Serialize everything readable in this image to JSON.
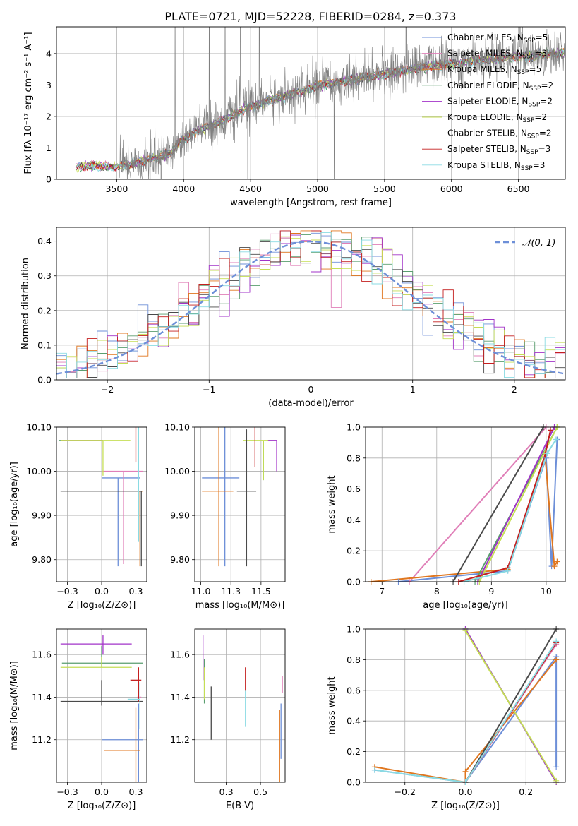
{
  "figure": {
    "title": "PLATE=0721, MJD=52228, FIBERID=0284, z=0.373"
  },
  "models": [
    {
      "name": "Chabrier MILES",
      "nssp": "5",
      "color": "#6d8fd8"
    },
    {
      "name": "Salpeter MILES",
      "nssp": "3",
      "color": "#e07fb8"
    },
    {
      "name": "Kroupa MILES",
      "nssp": "5",
      "color": "#e0761e"
    },
    {
      "name": "Chabrier ELODIE",
      "nssp": "2",
      "color": "#5a9e6f"
    },
    {
      "name": "Salpeter ELODIE",
      "nssp": "2",
      "color": "#a233c8"
    },
    {
      "name": "Kroupa ELODIE",
      "nssp": "2",
      "color": "#c5de54"
    },
    {
      "name": "Chabrier STELIB",
      "nssp": "2",
      "color": "#4a4a4a"
    },
    {
      "name": "Salpeter STELIB",
      "nssp": "3",
      "color": "#c41f1f"
    },
    {
      "name": "Kroupa STELIB",
      "nssp": "3",
      "color": "#8adbe3"
    }
  ],
  "chart_data": [
    {
      "id": "spectrum",
      "type": "line",
      "xlabel": "wavelength [Angstrom, rest frame]",
      "ylabel": "Flux [fλ 10⁻¹⁷ erg cm⁻² s⁻¹ A⁻¹]",
      "xlim": [
        3050,
        6850
      ],
      "ylim": [
        0,
        4.85
      ],
      "xticks": [
        3500,
        4000,
        4500,
        5000,
        5500,
        6000,
        6500
      ],
      "yticks": [
        0,
        1,
        2,
        3,
        4
      ],
      "data_color": "#808080",
      "data_x_range": [
        3520,
        6850
      ],
      "model_x_range": [
        3200,
        6850
      ],
      "continuum": {
        "x": [
          3200,
          3300,
          3500,
          3700,
          3900,
          4000,
          4100,
          4300,
          4500,
          4700,
          4900,
          5000,
          5200,
          5400,
          5600,
          5800,
          6000,
          6200,
          6400,
          6600,
          6850
        ],
        "y": [
          0.4,
          0.45,
          0.42,
          0.6,
          0.85,
          1.3,
          1.55,
          1.9,
          2.35,
          2.6,
          2.85,
          3.0,
          3.15,
          3.3,
          3.45,
          3.6,
          3.7,
          3.8,
          3.9,
          3.95,
          4.05
        ]
      },
      "legend": "top-right"
    },
    {
      "id": "residuals",
      "type": "histogram",
      "xlabel": "(data-model)/error",
      "ylabel": "Normed distribution",
      "xlim": [
        -2.5,
        2.5
      ],
      "ylim": [
        0,
        0.44
      ],
      "xticks": [
        -2,
        -1,
        0,
        1,
        2
      ],
      "yticks": [
        0.0,
        0.1,
        0.2,
        0.3,
        0.4
      ],
      "bin_width": 0.1,
      "reference_curve": {
        "label": "𝒩(0, 1)",
        "mean": 0,
        "sigma": 1,
        "color": "#6d8fd8"
      },
      "legend": "top-right"
    },
    {
      "id": "age-vs-Z",
      "type": "errorbar",
      "xlabel": "Z [log₁₀(Z/Z⊙)]",
      "ylabel": "age  [log₁₀(age/yr)]",
      "xlim": [
        -0.33,
        0.33
      ],
      "ylim": [
        9.75,
        10.1
      ],
      "xticks": [
        -0.25,
        0.0,
        0.25
      ],
      "yticks": [
        9.8,
        9.9,
        10.0,
        10.1
      ],
      "points": [
        {
          "model": 0,
          "x": 0.12,
          "xerr": [
            0.12,
            0.16
          ],
          "y": 9.985,
          "yerr": [
            0.2,
            0.0
          ]
        },
        {
          "model": 1,
          "x": 0.16,
          "xerr": [
            0.16,
            0.14
          ],
          "y": 10.0,
          "yerr": [
            0.21,
            0.0
          ]
        },
        {
          "model": 2,
          "x": 0.28,
          "xerr": [
            0.0,
            0.02
          ],
          "y": 9.955,
          "yerr": [
            0.17,
            0.0
          ]
        },
        {
          "model": 3,
          "x": 0.01,
          "xerr": [
            0.32,
            0.0
          ],
          "y": 10.07,
          "yerr": [
            0.0,
            0.0
          ]
        },
        {
          "model": 4,
          "x": 0.01,
          "xerr": [
            0.3,
            0.0
          ],
          "y": 10.07,
          "yerr": [
            0.0,
            0.0
          ]
        },
        {
          "model": 5,
          "x": 0.01,
          "xerr": [
            0.31,
            0.2
          ],
          "y": 10.07,
          "yerr": [
            0.08,
            0.0
          ]
        },
        {
          "model": 6,
          "x": 0.29,
          "xerr": [
            0.59,
            0.0
          ],
          "y": 9.955,
          "yerr": [
            0.17,
            0.0
          ]
        },
        {
          "model": 7,
          "x": 0.25,
          "xerr": [
            0.03,
            0.03
          ],
          "y": 10.11,
          "yerr": [
            0.09,
            0.02
          ]
        },
        {
          "model": 8,
          "x": 0.27,
          "xerr": [
            0.03,
            0.02
          ],
          "y": 10.14,
          "yerr": [
            0.3,
            0.0
          ]
        }
      ]
    },
    {
      "id": "age-vs-mass",
      "type": "errorbar",
      "xlabel": "mass [log₁₀(M/M⊙)]",
      "ylabel": "",
      "xlim": [
        10.95,
        11.7
      ],
      "ylim": [
        9.75,
        10.1
      ],
      "xticks": [
        11.0,
        11.25,
        11.5
      ],
      "yticks": [
        9.8,
        9.9,
        10.0,
        10.1
      ],
      "points": [
        {
          "model": 0,
          "x": 11.2,
          "xerr": [
            0.19,
            0.12
          ],
          "y": 9.985,
          "yerr": [
            0.2,
            0.13
          ]
        },
        {
          "model": 1,
          "x": 11.47,
          "xerr": [
            0.0,
            0.0
          ],
          "y": 10.0,
          "yerr": [
            0.0,
            0.0
          ]
        },
        {
          "model": 2,
          "x": 11.15,
          "xerr": [
            0.14,
            0.12
          ],
          "y": 9.955,
          "yerr": [
            0.17,
            0.15
          ]
        },
        {
          "model": 3,
          "x": 11.52,
          "xerr": [
            0.0,
            0.0
          ],
          "y": 10.07,
          "yerr": [
            0.09,
            0.0
          ]
        },
        {
          "model": 4,
          "x": 11.63,
          "xerr": [
            0.08,
            0.0
          ],
          "y": 10.07,
          "yerr": [
            0.07,
            0.0
          ]
        },
        {
          "model": 5,
          "x": 11.52,
          "xerr": [
            0.17,
            0.04
          ],
          "y": 10.07,
          "yerr": [
            0.09,
            0.0
          ]
        },
        {
          "model": 6,
          "x": 11.38,
          "xerr": [
            0.08,
            0.08
          ],
          "y": 9.955,
          "yerr": [
            0.17,
            0.14
          ]
        },
        {
          "model": 7,
          "x": 11.45,
          "xerr": [
            0.07,
            0.07
          ],
          "y": 10.11,
          "yerr": [
            0.1,
            0.04
          ]
        },
        {
          "model": 8,
          "x": 11.39,
          "xerr": [
            0.08,
            0.0
          ],
          "y": 10.14,
          "yerr": [
            0.0,
            0.0
          ]
        }
      ]
    },
    {
      "id": "massweight-vs-age",
      "type": "line",
      "xlabel": "age  [log₁₀(age/yr)]",
      "ylabel": "mass weight",
      "xlim": [
        6.7,
        10.35
      ],
      "ylim": [
        0,
        1
      ],
      "xticks": [
        7,
        8,
        9,
        10
      ],
      "yticks": [
        0.0,
        0.2,
        0.4,
        0.6,
        0.8,
        1.0
      ],
      "series": [
        {
          "model": 0,
          "x": [
            7.3,
            9.3,
            10.0,
            10.1,
            10.2
          ],
          "y": [
            0.0,
            0.07,
            0.8,
            0.1,
            0.92
          ]
        },
        {
          "model": 1,
          "x": [
            7.5,
            10.0
          ],
          "y": [
            0.0,
            1.0
          ]
        },
        {
          "model": 2,
          "x": [
            6.8,
            9.3,
            9.98,
            10.15,
            10.2
          ],
          "y": [
            0.0,
            0.08,
            0.82,
            0.1,
            0.13
          ]
        },
        {
          "model": 3,
          "x": [
            8.7,
            10.2
          ],
          "y": [
            0.0,
            1.0
          ]
        },
        {
          "model": 4,
          "x": [
            8.75,
            10.15
          ],
          "y": [
            0.0,
            1.0
          ]
        },
        {
          "model": 5,
          "x": [
            8.78,
            10.2
          ],
          "y": [
            0.0,
            1.0
          ]
        },
        {
          "model": 6,
          "x": [
            8.3,
            9.95
          ],
          "y": [
            0.0,
            1.0
          ]
        },
        {
          "model": 7,
          "x": [
            8.4,
            9.3,
            9.98,
            10.08
          ],
          "y": [
            0.0,
            0.09,
            0.82,
            0.98
          ]
        },
        {
          "model": 8,
          "x": [
            8.5,
            9.3,
            10.02,
            10.18
          ],
          "y": [
            0.0,
            0.07,
            0.83,
            0.92
          ]
        }
      ]
    },
    {
      "id": "mass-vs-Z",
      "type": "errorbar",
      "xlabel": "Z [log₁₀(Z/Z⊙)]",
      "ylabel": "mass [log₁₀(M/M⊙)]",
      "xlim": [
        -0.33,
        0.33
      ],
      "ylim": [
        11.0,
        11.72
      ],
      "xticks": [
        -0.25,
        0.0,
        0.25
      ],
      "yticks": [
        11.2,
        11.4,
        11.6
      ],
      "points": [
        {
          "model": 0,
          "x": 0.27,
          "xerr": [
            0.27,
            0.03
          ],
          "y": 11.2,
          "yerr": [
            0.24,
            0.17
          ]
        },
        {
          "model": 1,
          "x": 0.29,
          "xerr": [
            0.03,
            0.0
          ],
          "y": 11.4,
          "yerr": [
            0.0,
            0.0
          ]
        },
        {
          "model": 2,
          "x": 0.25,
          "xerr": [
            0.23,
            0.03
          ],
          "y": 11.15,
          "yerr": [
            0.16,
            0.2
          ]
        },
        {
          "model": 3,
          "x": 0.0,
          "xerr": [
            0.29,
            0.3
          ],
          "y": 11.56,
          "yerr": [
            0.02,
            0.08
          ]
        },
        {
          "model": 4,
          "x": 0.01,
          "xerr": [
            0.31,
            0.21
          ],
          "y": 11.65,
          "yerr": [
            0.05,
            0.04
          ]
        },
        {
          "model": 5,
          "x": 0.0,
          "xerr": [
            0.3,
            0.22
          ],
          "y": 11.54,
          "yerr": [
            0.0,
            0.05
          ]
        },
        {
          "model": 6,
          "x": 0.0,
          "xerr": [
            0.3,
            0.3
          ],
          "y": 11.38,
          "yerr": [
            0.02,
            0.1
          ]
        },
        {
          "model": 7,
          "x": 0.27,
          "xerr": [
            0.06,
            0.02
          ],
          "y": 11.48,
          "yerr": [
            0.1,
            0.06
          ]
        },
        {
          "model": 8,
          "x": 0.28,
          "xerr": [
            0.09,
            0.0
          ],
          "y": 11.39,
          "yerr": [
            0.14,
            0.08
          ]
        }
      ]
    },
    {
      "id": "mass-vs-EBV",
      "type": "errorbar",
      "xlabel": "E(B-V)",
      "ylabel": "",
      "xlim": [
        0.02,
        0.68
      ],
      "ylim": [
        11.0,
        11.72
      ],
      "xticks": [
        0.25,
        0.5
      ],
      "yticks": [
        11.2,
        11.4,
        11.6
      ],
      "points": [
        {
          "model": 0,
          "x": 0.65,
          "xerr": [
            0.0,
            0.0
          ],
          "y": 11.24,
          "yerr": [
            0.13,
            0.13
          ]
        },
        {
          "model": 1,
          "x": 0.66,
          "xerr": [
            0.0,
            0.0
          ],
          "y": 11.42,
          "yerr": [
            0.0,
            0.08
          ]
        },
        {
          "model": 2,
          "x": 0.64,
          "xerr": [
            0.0,
            0.0
          ],
          "y": 11.15,
          "yerr": [
            0.16,
            0.19
          ]
        },
        {
          "model": 3,
          "x": 0.09,
          "xerr": [
            0.0,
            0.0
          ],
          "y": 11.5,
          "yerr": [
            0.13,
            0.08
          ]
        },
        {
          "model": 4,
          "x": 0.08,
          "xerr": [
            0.0,
            0.0
          ],
          "y": 11.6,
          "yerr": [
            0.12,
            0.09
          ]
        },
        {
          "model": 5,
          "x": 0.09,
          "xerr": [
            0.0,
            0.0
          ],
          "y": 11.43,
          "yerr": [
            0.04,
            0.11
          ]
        },
        {
          "model": 6,
          "x": 0.14,
          "xerr": [
            0.0,
            0.0
          ],
          "y": 11.32,
          "yerr": [
            0.12,
            0.13
          ]
        },
        {
          "model": 7,
          "x": 0.39,
          "xerr": [
            0.0,
            0.0
          ],
          "y": 11.48,
          "yerr": [
            0.05,
            0.06
          ]
        },
        {
          "model": 8,
          "x": 0.39,
          "xerr": [
            0.0,
            0.0
          ],
          "y": 11.35,
          "yerr": [
            0.09,
            0.08
          ]
        }
      ]
    },
    {
      "id": "massweight-vs-Z",
      "type": "line",
      "xlabel": "Z [log₁₀(Z/Z⊙)]",
      "ylabel": "mass weight",
      "xlim": [
        -0.33,
        0.33
      ],
      "ylim": [
        0,
        1
      ],
      "xticks": [
        -0.2,
        0.0,
        0.2
      ],
      "yticks": [
        0.0,
        0.2,
        0.4,
        0.6,
        0.8,
        1.0
      ],
      "series": [
        {
          "model": 0,
          "x": [
            -0.3,
            0.0,
            0.3,
            0.3
          ],
          "y": [
            0.08,
            0.0,
            0.82,
            0.1
          ]
        },
        {
          "model": 1,
          "x": [
            0.0,
            0.3
          ],
          "y": [
            0.0,
            0.9
          ]
        },
        {
          "model": 2,
          "x": [
            -0.3,
            0.0,
            0.0,
            0.3
          ],
          "y": [
            0.1,
            0.0,
            0.07,
            0.8
          ]
        },
        {
          "model": 3,
          "x": [
            0.0,
            0.3
          ],
          "y": [
            1.0,
            0.0
          ]
        },
        {
          "model": 4,
          "x": [
            0.0,
            0.3
          ],
          "y": [
            1.0,
            0.0
          ]
        },
        {
          "model": 5,
          "x": [
            0.0,
            0.3
          ],
          "y": [
            0.99,
            0.01
          ]
        },
        {
          "model": 6,
          "x": [
            0.0,
            0.3
          ],
          "y": [
            0.0,
            1.0
          ]
        },
        {
          "model": 7,
          "x": [
            0.0,
            0.3
          ],
          "y": [
            0.0,
            0.91
          ]
        },
        {
          "model": 8,
          "x": [
            -0.3,
            0.0,
            0.3
          ],
          "y": [
            0.08,
            0.0,
            0.92
          ]
        }
      ]
    }
  ]
}
